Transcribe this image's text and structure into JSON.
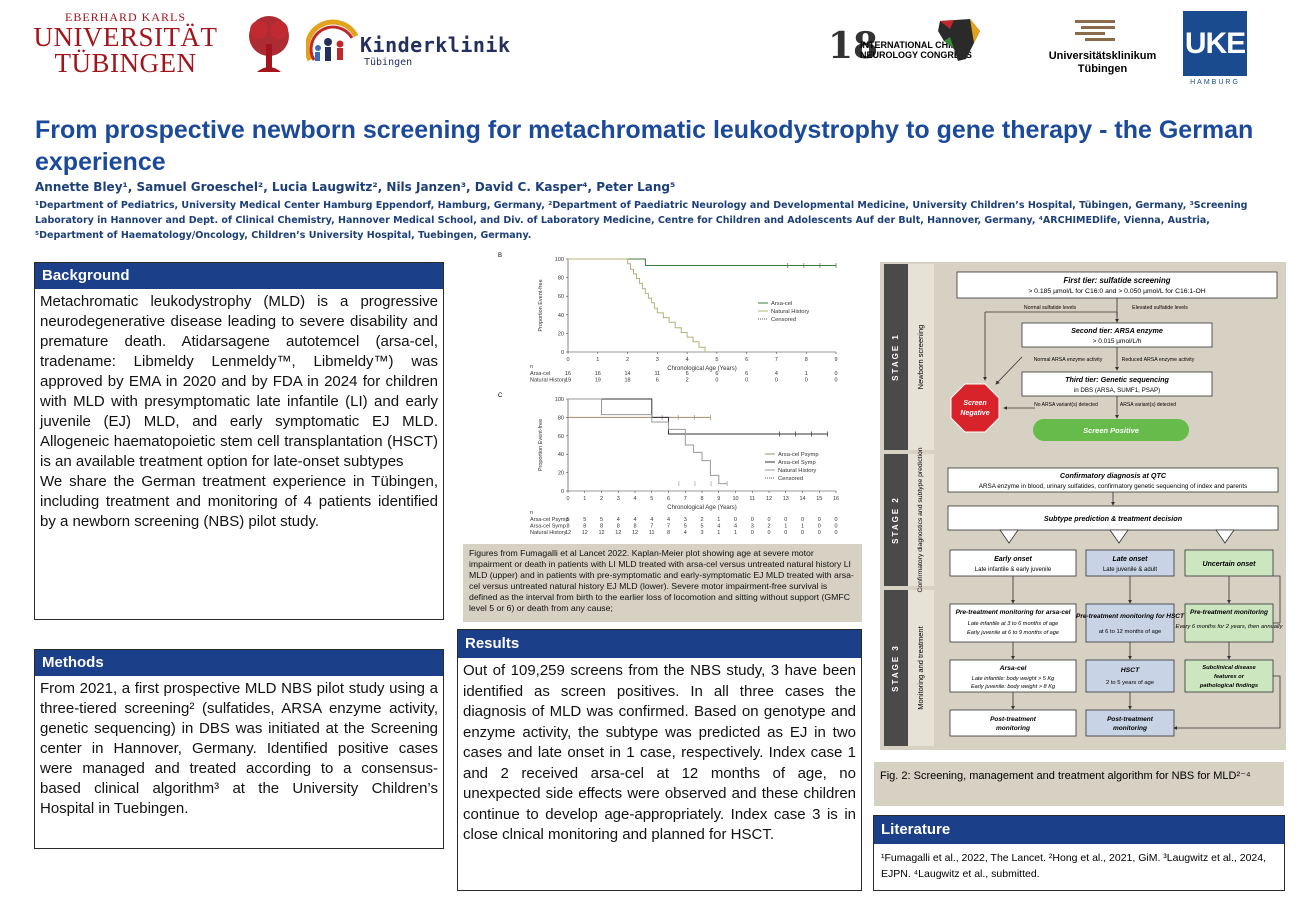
{
  "logos": {
    "tue_line1": "EBERHARD KARLS",
    "tue_line2": "UNIVERSITÄT",
    "tue_line3": "TÜBINGEN",
    "kinderklinik": "Kinderklinik",
    "kinderklinik_sub": "Tübingen",
    "icnc_number": "18",
    "icnc_line1": "INTERNATIONAL CHILD",
    "icnc_line2": "NEUROLOGY CONGRESS",
    "ukt_line1": "Universitätsklinikum",
    "ukt_line2": "Tübingen",
    "uke": "UKE",
    "uke_sub": "HAMBURG"
  },
  "title": "From prospective newborn screening for metachromatic leukodystrophy to gene therapy - the German experience",
  "authors": "Annette Bley¹, Samuel Groeschel², Lucia Laugwitz², Nils Janzen³, David C. Kasper⁴, Peter Lang⁵",
  "affiliations": "¹Department of Pediatrics, University Medical Center Hamburg Eppendorf, Hamburg, Germany, ²Department of Paediatric Neurology and Developmental Medicine, University Children’s Hospital, Tübingen, Germany, ³Screening Laboratory in Hannover and Dept. of Clinical Chemistry, Hannover Medical School, and Div. of Laboratory Medicine, Centre for Children and Adolescents Auf der Bult, Hannover, Germany, ⁴ARCHIMEDlife, Vienna, Austria, ⁵Department of Haematology/Oncology, Children’s University Hospital, Tuebingen, Germany.",
  "background": {
    "heading": "Background",
    "p1": "Metachromatic leukodystrophy (MLD) is a progressive neurodegenerative disease leading to severe disability and premature death. Atidarsagene autotemcel (arsa-cel, tradename: Libmeldy Lenmeldy™, Libmeldy™) was approved by EMA in 2020 and by FDA in 2024 for children with MLD with presymptomatic late infantile (LI) and early juvenile (EJ) MLD, and early symptomatic EJ MLD. Allogeneic haematopoietic stem cell transplantation (HSCT) is an available treatment option for late-onset subtypes",
    "p2": "We share the German treatment experience in Tübingen, including treatment and monitoring of 4 patients identified by a newborn screening (NBS) pilot study."
  },
  "methods": {
    "heading": "Methods",
    "p1": "From 2021, a first prospective MLD NBS pilot study using a three-tiered screening² (sulfatides, ARSA enzyme activity, genetic sequencing) in DBS was initiated at the Screening center in Hannover, Germany. Identified positive cases were managed and treated according to a consensus-based clinical algorithm³ at the University Children’s Hospital in Tuebingen."
  },
  "results": {
    "heading": "Results",
    "p1": "Out of 109,259 screens from the NBS study, 3 have been identified as screen positives. In all three cases the diagnosis of MLD was confirmed. Based on genotype and enzyme activity, the subtype was predicted as EJ in two cases and late onset in 1 case, respectively. Index case 1 and 2 received arsa-cel at 12 months of age, no unexpected side effects were observed and these children continue to develop age-appropriately. Index case 3 is in close clnical monitoring and planned for HSCT."
  },
  "chart_caption": "Figures from Fumagalli et al Lancet 2022. Kaplan-Meier plot showing age at severe motor impairment or death in patients with LI MLD treated with arsa-cel versus untreated natural history LI MLD (upper) and in patients with pre-symptomatic and early-symptomatic EJ MLD treated with arsa-cel versus untreated natural history EJ MLD (lower). Severe motor impairment-free survival is defined as the interval from birth to the earlier loss of locomotion and sitting without support (GMFC level 5 or 6) or death from any cause;",
  "chart_data": [
    {
      "panel": "B",
      "type": "line",
      "ylabel": "Proportion Event-free",
      "xlabel": "Chronological Age (Years)",
      "xlim": [
        0,
        9
      ],
      "ylim": [
        0,
        100
      ],
      "xticks": [
        "0",
        "1",
        "2",
        "3",
        "4",
        "5",
        "6",
        "7",
        "8",
        "9"
      ],
      "yticks": [
        "0",
        "20",
        "40",
        "60",
        "80",
        "100"
      ],
      "legend": [
        "Arsa-cel",
        "Natural History",
        "Censored"
      ],
      "series": [
        {
          "name": "Arsa-cel",
          "color": "#3d7a3d",
          "x": [
            0,
            2.6,
            2.6,
            9
          ],
          "y": [
            100,
            100,
            93,
            93
          ]
        },
        {
          "name": "Natural History",
          "color": "#b8b07a",
          "x": [
            0,
            2.0,
            2.1,
            2.2,
            2.3,
            2.4,
            2.5,
            2.6,
            2.7,
            2.8,
            2.9,
            3.0,
            3.2,
            3.4,
            3.6,
            3.8,
            4.0,
            4.2,
            4.4,
            4.6
          ],
          "y": [
            100,
            95,
            89,
            84,
            79,
            74,
            68,
            63,
            58,
            53,
            47,
            42,
            37,
            32,
            26,
            21,
            16,
            11,
            5,
            0
          ]
        }
      ],
      "risk_table": {
        "header": "n",
        "rows": [
          {
            "label": "Arsa-cel",
            "values": [
              "16",
              "16",
              "14",
              "11",
              "6",
              "6",
              "6",
              "4",
              "1",
              "0"
            ]
          },
          {
            "label": "Natural History",
            "values": [
              "19",
              "19",
              "18",
              "6",
              "2",
              "0",
              "0",
              "0",
              "0",
              "0"
            ]
          }
        ]
      }
    },
    {
      "panel": "C",
      "type": "line",
      "ylabel": "Proportion Event-free",
      "xlabel": "Chronological Age (Years)",
      "xlim": [
        0,
        16
      ],
      "ylim": [
        0,
        100
      ],
      "xticks": [
        "0",
        "1",
        "2",
        "3",
        "4",
        "5",
        "6",
        "7",
        "8",
        "9",
        "10",
        "11",
        "12",
        "13",
        "14",
        "15",
        "16"
      ],
      "yticks": [
        "0",
        "20",
        "40",
        "60",
        "80",
        "100"
      ],
      "legend": [
        "Arsa-cel Psymp",
        "Arsa-cel Symp",
        "Natural History",
        "Censored"
      ],
      "series": [
        {
          "name": "Arsa-cel Psymp",
          "color": "#a08a6a",
          "x": [
            0,
            8.5
          ],
          "y": [
            80,
            80
          ]
        },
        {
          "name": "Arsa-cel Symp",
          "color": "#333333",
          "x": [
            0,
            5,
            5,
            6,
            6,
            15.5
          ],
          "y": [
            100,
            100,
            80,
            80,
            62,
            62
          ]
        },
        {
          "name": "Natural History",
          "color": "#9a9a9a",
          "x": [
            0,
            2,
            2,
            5,
            5,
            6,
            6,
            7,
            7,
            7.5,
            7.5,
            8,
            8,
            8.5,
            8.5,
            9,
            9,
            9.5
          ],
          "y": [
            100,
            100,
            83,
            83,
            75,
            75,
            67,
            67,
            50,
            50,
            42,
            42,
            33,
            33,
            17,
            17,
            8,
            8
          ]
        }
      ],
      "risk_table": {
        "header": "n",
        "rows": [
          {
            "label": "Arsa-cel Psymp",
            "values": [
              "5",
              "5",
              "5",
              "4",
              "4",
              "4",
              "4",
              "3",
              "2",
              "1",
              "0",
              "0",
              "0",
              "0",
              "0",
              "0",
              "0"
            ]
          },
          {
            "label": "Arsa-cel Symp",
            "values": [
              "8",
              "8",
              "8",
              "8",
              "8",
              "7",
              "7",
              "5",
              "5",
              "4",
              "4",
              "3",
              "2",
              "1",
              "1",
              "0",
              "0"
            ]
          },
          {
            "label": "Natural History",
            "values": [
              "12",
              "12",
              "12",
              "12",
              "12",
              "11",
              "8",
              "4",
              "3",
              "1",
              "1",
              "0",
              "0",
              "0",
              "0",
              "0",
              "0"
            ]
          }
        ]
      }
    }
  ],
  "flowchart": {
    "stage1": "STAGE 1",
    "stage1_sub": "Newborn screening",
    "stage2": "STAGE 2",
    "stage2_sub": "Confirmatory diagnostics and subtype prediction",
    "stage3": "STAGE 3",
    "stage3_sub": "Monitoring and treatment",
    "tier1_title": "First tier: sulfatide screening",
    "tier1_text": "> 0.185 µmol/L for C16:0 and > 0.050 µmol/L for C16:1-OH",
    "normal_sulf": "Normal sulfatide levels",
    "elevated_sulf": "Elevated sulfatide levels",
    "tier2_title": "Second tier: ARSA enzyme",
    "tier2_text": "> 0.015 µmol/L/h",
    "normal_arsa": "Normal ARSA enzyme activity",
    "reduced_arsa": "Reduced ARSA enzyme activity",
    "tier3_title": "Third tier: Genetic sequencing",
    "tier3_text": "in DBS (ARSA, SUMF1, PSAP)",
    "screen_negative": "Screen Negative",
    "no_variant": "No ARSA variant(s) detected",
    "variant": "ARSA variant(s) detected",
    "screen_positive": "Screen Positive",
    "confirm_title": "Confirmatory diagnosis at QTC",
    "confirm_text": "ARSA enzyme in blood, urinary sulfatides, confirmatory genetic sequencing of index and parents",
    "subtype": "Subtype prediction & treatment decision",
    "early_onset": "Early onset",
    "early_onset_sub": "Late infantile & early juvenile",
    "late_onset": "Late onset",
    "late_onset_sub": "Late juvenile & adult",
    "uncertain_onset": "Uncertain onset",
    "pre_arsa_title": "Pre-treatment monitoring for arsa-cel",
    "pre_arsa_text1": "Late infantile at 3 to 6 months of age",
    "pre_arsa_text2": "Early juvenile at 6 to 9 months of age",
    "pre_hsct_title": "Pre-treatment monitoring for HSCT",
    "pre_hsct_text": "at 6 to 12 months of age",
    "pre_unc_title": "Pre-treatment monitoring",
    "pre_unc_text": "Every 6 months for 2 years, then annually",
    "arsacel_title": "Arsa-cel",
    "arsacel_text1": "Late infantile: body weight > 5 Kg",
    "arsacel_text2": "Early juvenile: body weight > 8 Kg",
    "hsct_title": "HSCT",
    "hsct_text": "2 to 5 years of age",
    "subclinical": "Subclinical disease features or pathological findings",
    "post1": "Post-treatment monitoring",
    "post2": "Post-treatment monitoring"
  },
  "fig2_caption": "Fig. 2: Screening, management and treatment algorithm for NBS for MLD²⁻⁴",
  "literature": {
    "heading": "Literature",
    "text": "¹Fumagalli et al., 2022, The Lancet. ²Hong et al., 2021, GiM. ³Laugwitz et al., 2024, EJPN. ⁴Laugwitz et al., submitted."
  }
}
